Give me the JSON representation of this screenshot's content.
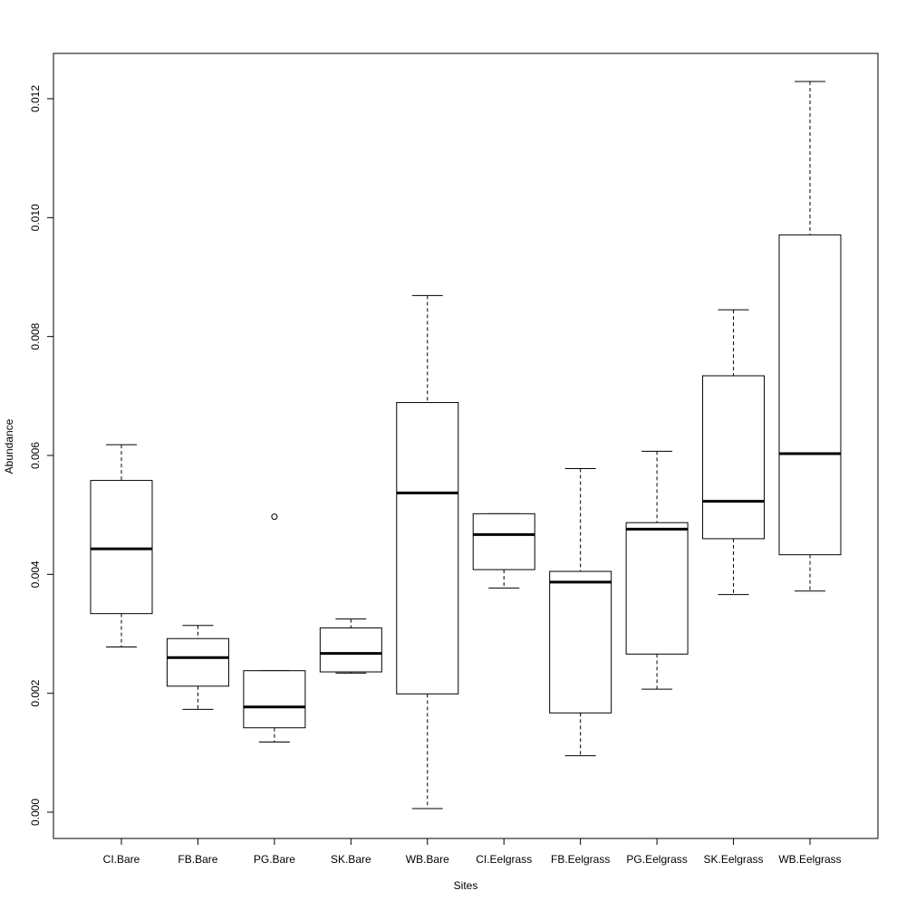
{
  "chart_data": {
    "type": "boxplot",
    "xlabel": "Sites",
    "ylabel": "Abundance",
    "ylim": [
      -0.0004,
      0.0128
    ],
    "yticks": [
      "0.000",
      "0.002",
      "0.004",
      "0.006",
      "0.008",
      "0.010",
      "0.012"
    ],
    "categories": [
      "CI.Bare",
      "FB.Bare",
      "PG.Bare",
      "SK.Bare",
      "WB.Bare",
      "CI.Eelgrass",
      "FB.Eelgrass",
      "PG.Eelgrass",
      "SK.Eelgrass",
      "WB.Eelgrass"
    ],
    "boxes": [
      {
        "min": 0.00278,
        "q1": 0.00334,
        "median": 0.00443,
        "q3": 0.00558,
        "max": 0.00618,
        "outliers": []
      },
      {
        "min": 0.00173,
        "q1": 0.00212,
        "median": 0.0026,
        "q3": 0.00292,
        "max": 0.00314,
        "outliers": []
      },
      {
        "min": 0.00118,
        "q1": 0.00142,
        "median": 0.00177,
        "q3": 0.00238,
        "max": 0.00238,
        "outliers": [
          0.00497
        ]
      },
      {
        "min": 0.00234,
        "q1": 0.00236,
        "median": 0.00267,
        "q3": 0.0031,
        "max": 0.00325,
        "outliers": []
      },
      {
        "min": 6e-05,
        "q1": 0.00199,
        "median": 0.00537,
        "q3": 0.00689,
        "max": 0.00869,
        "outliers": []
      },
      {
        "min": 0.00377,
        "q1": 0.00408,
        "median": 0.00467,
        "q3": 0.00502,
        "max": 0.00502,
        "outliers": []
      },
      {
        "min": 0.00095,
        "q1": 0.00167,
        "median": 0.00387,
        "q3": 0.00405,
        "max": 0.00578,
        "outliers": []
      },
      {
        "min": 0.00207,
        "q1": 0.00266,
        "median": 0.00476,
        "q3": 0.00487,
        "max": 0.00607,
        "outliers": []
      },
      {
        "min": 0.00366,
        "q1": 0.0046,
        "median": 0.00523,
        "q3": 0.00734,
        "max": 0.00845,
        "outliers": []
      },
      {
        "min": 0.00372,
        "q1": 0.00433,
        "median": 0.00603,
        "q3": 0.00971,
        "max": 0.01229,
        "outliers": []
      }
    ]
  }
}
